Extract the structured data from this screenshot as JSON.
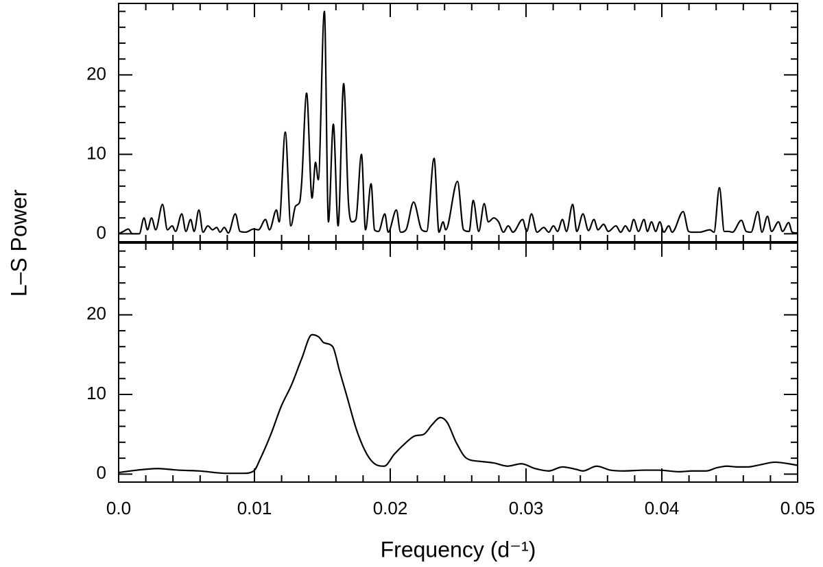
{
  "chart_data": [
    {
      "type": "line",
      "ylabel": "L–S Power",
      "xlim": [
        0,
        0.05
      ],
      "xticks": [
        0,
        0.01,
        0.02,
        0.03,
        0.04,
        0.05
      ],
      "xminorticks": [
        0.002,
        0.004,
        0.006,
        0.008,
        0.012,
        0.014,
        0.016,
        0.018,
        0.022,
        0.024,
        0.026,
        0.028,
        0.032,
        0.034,
        0.036,
        0.038,
        0.042,
        0.044,
        0.046,
        0.048
      ],
      "ylim": [
        -1,
        29
      ],
      "yticks": [
        0,
        10,
        20
      ],
      "yminorticks": [
        2,
        4,
        6,
        8,
        12,
        14,
        16,
        18,
        22,
        24,
        26,
        28
      ],
      "series": [
        {
          "color": "#000000",
          "x": [
            0,
            0.00035,
            0.00071,
            0.00101,
            0.00152,
            0.00187,
            0.00212,
            0.00242,
            0.00273,
            0.00323,
            0.00359,
            0.00394,
            0.00419,
            0.00465,
            0.00495,
            0.0053,
            0.00556,
            0.00591,
            0.00621,
            0.00657,
            0.00692,
            0.00722,
            0.00747,
            0.00778,
            0.00808,
            0.00859,
            0.00894,
            0.00934,
            0.00995,
            0.0103,
            0.01081,
            0.01111,
            0.01162,
            0.01182,
            0.01227,
            0.01268,
            0.01303,
            0.01333,
            0.01348,
            0.01384,
            0.01424,
            0.0145,
            0.0147,
            0.01515,
            0.01545,
            0.01581,
            0.01616,
            0.01657,
            0.01692,
            0.01717,
            0.01747,
            0.01788,
            0.01818,
            0.01859,
            0.01884,
            0.01914,
            0.0196,
            0.01985,
            0.02045,
            0.02076,
            0.02116,
            0.02172,
            0.02232,
            0.02268,
            0.02323,
            0.02359,
            0.02389,
            0.02409,
            0.02495,
            0.0254,
            0.02581,
            0.02611,
            0.02652,
            0.02692,
            0.02722,
            0.02763,
            0.02798,
            0.02833,
            0.02869,
            0.02904,
            0.02975,
            0.03005,
            0.0304,
            0.03081,
            0.03131,
            0.03167,
            0.03202,
            0.03232,
            0.03268,
            0.03298,
            0.03343,
            0.03374,
            0.03419,
            0.0346,
            0.035,
            0.0353,
            0.03571,
            0.03606,
            0.03662,
            0.03697,
            0.03732,
            0.03763,
            0.03793,
            0.03828,
            0.03869,
            0.03894,
            0.03924,
            0.03955,
            0.03985,
            0.04015,
            0.04051,
            0.04076,
            0.04157,
            0.04197,
            0.04227,
            0.04278,
            0.04354,
            0.04384,
            0.04424,
            0.0446,
            0.0449,
            0.0452,
            0.04586,
            0.04621,
            0.04657,
            0.04707,
            0.04737,
            0.04778,
            0.04808,
            0.04859,
            0.04889,
            0.04934,
            0.0496,
            0.05
          ],
          "values": [
            0,
            0.3,
            0.6,
            0,
            0,
            2.0,
            0.5,
            2.0,
            0.5,
            3.7,
            0.5,
            1.0,
            0.3,
            2.5,
            0.3,
            1.8,
            0.3,
            3.0,
            0.2,
            1.0,
            0.5,
            0.8,
            0.2,
            0.8,
            0.1,
            2.5,
            0.3,
            0.2,
            0.6,
            0.5,
            1.8,
            0.5,
            3.0,
            1.5,
            12.8,
            1.0,
            3.5,
            4.0,
            6.5,
            17.7,
            4.5,
            9.0,
            6.8,
            28.0,
            1.5,
            13.8,
            1.0,
            18.9,
            4.0,
            1.5,
            1.8,
            10.0,
            0.5,
            6.3,
            0.5,
            0.3,
            2.5,
            0.2,
            3.0,
            0.2,
            0.5,
            4.0,
            0.5,
            0.3,
            9.5,
            0.2,
            1.5,
            0.5,
            6.6,
            0.5,
            0.3,
            4.2,
            0.3,
            3.8,
            1.5,
            2.0,
            1.5,
            0.2,
            1.0,
            0.2,
            1.8,
            0.3,
            2.5,
            0.2,
            0.8,
            0.2,
            1.0,
            0.3,
            1.8,
            0.3,
            3.7,
            0.3,
            2.5,
            0.4,
            1.8,
            0.5,
            1.2,
            0.3,
            1.0,
            0.2,
            1.0,
            0.3,
            1.8,
            0.3,
            1.8,
            0.3,
            1.5,
            0.3,
            1.5,
            0.2,
            1.0,
            0.2,
            2.8,
            0.3,
            0.2,
            0.2,
            0.5,
            0.2,
            5.8,
            0.3,
            0.3,
            0.2,
            1.7,
            0.3,
            0.2,
            2.8,
            0.2,
            2.2,
            0.3,
            1.5,
            0.3,
            1.4,
            0.2,
            0.1
          ]
        }
      ]
    },
    {
      "type": "line",
      "xlabel": "Frequency (d⁻¹)",
      "xlim": [
        0,
        0.05
      ],
      "xticks": [
        {
          "value": 0,
          "label": "0.0"
        },
        0.01,
        0.02,
        0.03,
        0.04,
        0.05
      ],
      "xminorticks": [
        0.002,
        0.004,
        0.006,
        0.008,
        0.012,
        0.014,
        0.016,
        0.018,
        0.022,
        0.024,
        0.026,
        0.028,
        0.032,
        0.034,
        0.036,
        0.038,
        0.042,
        0.044,
        0.046,
        0.048
      ],
      "ylim": [
        -1,
        29
      ],
      "yticks": [
        0,
        10,
        20
      ],
      "yminorticks": [
        2,
        4,
        6,
        8,
        12,
        14,
        16,
        18,
        22,
        24,
        26,
        28
      ],
      "series": [
        {
          "color": "#000000",
          "x": [
            0,
            0.00136,
            0.00288,
            0.00439,
            0.00591,
            0.00793,
            0.00919,
            0.00995,
            0.01045,
            0.01121,
            0.01197,
            0.01273,
            0.01348,
            0.01424,
            0.01475,
            0.0151,
            0.01576,
            0.01626,
            0.01677,
            0.01753,
            0.01828,
            0.01894,
            0.01955,
            0.0203,
            0.02106,
            0.02182,
            0.02247,
            0.02308,
            0.02369,
            0.02419,
            0.02485,
            0.02561,
            0.02662,
            0.02763,
            0.02864,
            0.02965,
            0.03066,
            0.03167,
            0.03268,
            0.03369,
            0.03419,
            0.0352,
            0.03621,
            0.03722,
            0.03874,
            0.03975,
            0.04126,
            0.04227,
            0.04328,
            0.04404,
            0.0448,
            0.04556,
            0.04631,
            0.04732,
            0.04833,
            0.04934,
            0.05
          ],
          "values": [
            0.2,
            0.5,
            0.7,
            0.5,
            0.4,
            0.1,
            0.1,
            0.4,
            2.0,
            5.0,
            8.5,
            11.2,
            14.5,
            17.5,
            17.2,
            16.5,
            16.0,
            13.0,
            10.0,
            5.5,
            2.5,
            1.2,
            1.0,
            2.5,
            3.8,
            4.8,
            5.0,
            6.2,
            7.1,
            6.5,
            4.0,
            2.0,
            1.6,
            1.4,
            1.0,
            1.3,
            0.7,
            0.4,
            0.9,
            0.6,
            0.4,
            1.0,
            0.5,
            0.4,
            0.5,
            0.5,
            0.3,
            0.4,
            0.4,
            0.8,
            1.0,
            0.9,
            0.9,
            1.2,
            1.5,
            1.3,
            1.1
          ]
        }
      ]
    }
  ]
}
